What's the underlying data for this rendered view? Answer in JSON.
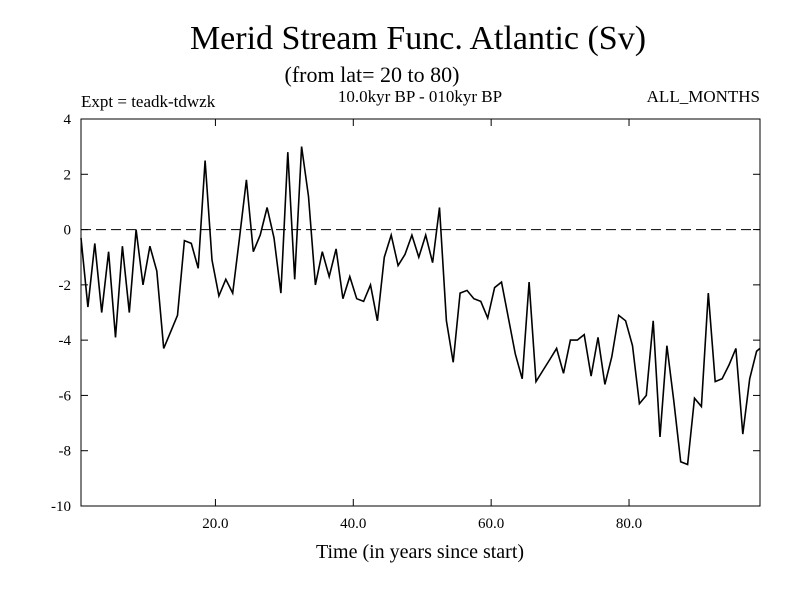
{
  "chart_data": {
    "type": "line",
    "title": "Merid Stream Func. Atlantic (Sv)",
    "subtitle": "(from lat= 20 to 80)",
    "expt_label": "Expt = teadk-tdwzk",
    "period_label": "10.0kyr BP - 010kyr BP",
    "months_label": "ALL_MONTHS",
    "xlabel": "Time (in years since start)",
    "ylabel": "",
    "xlim": [
      0.5,
      99
    ],
    "ylim": [
      -10,
      4
    ],
    "xticks": [
      20,
      40,
      60,
      80
    ],
    "xtick_labels": [
      "20.0",
      "40.0",
      "60.0",
      "80.0"
    ],
    "yticks": [
      -10,
      -8,
      -6,
      -4,
      -2,
      0,
      2,
      4
    ],
    "ytick_labels": [
      "-10",
      "-8",
      "-6",
      "-4",
      "-2",
      "0",
      "2",
      "4"
    ],
    "reference_line": {
      "y": 0,
      "style": "dashed"
    },
    "series": [
      {
        "name": "Merid Stream Func.",
        "x": [
          0.5,
          1.5,
          2.5,
          3.5,
          4.5,
          5.5,
          6.5,
          7.5,
          8.5,
          9.5,
          10.5,
          11.5,
          12.5,
          13.5,
          14.5,
          15.5,
          16.5,
          17.5,
          18.5,
          19.5,
          20.5,
          21.5,
          22.5,
          23.5,
          24.5,
          25.5,
          26.5,
          27.5,
          28.5,
          29.5,
          30.5,
          31.5,
          32.5,
          33.5,
          34.5,
          35.5,
          36.5,
          37.5,
          38.5,
          39.5,
          40.5,
          41.5,
          42.5,
          43.5,
          44.5,
          45.5,
          46.5,
          47.5,
          48.5,
          49.5,
          50.5,
          51.5,
          52.5,
          53.5,
          54.5,
          55.5,
          56.5,
          57.5,
          58.5,
          59.5,
          60.5,
          61.5,
          62.5,
          63.5,
          64.5,
          65.5,
          66.5,
          67.5,
          68.5,
          69.5,
          70.5,
          71.5,
          72.5,
          73.5,
          74.5,
          75.5,
          76.5,
          77.5,
          78.5,
          79.5,
          80.5,
          81.5,
          82.5,
          83.5,
          84.5,
          85.5,
          86.5,
          87.5,
          88.5,
          89.5,
          90.5,
          91.5,
          92.5,
          93.5,
          94.5,
          95.5,
          96.5,
          97.5,
          98.5,
          99.0
        ],
        "values": [
          -0.3,
          -2.8,
          -0.5,
          -3.0,
          -0.8,
          -3.9,
          -0.6,
          -3.0,
          0.0,
          -2.0,
          -0.6,
          -1.5,
          -4.3,
          -3.7,
          -3.1,
          -0.4,
          -0.5,
          -1.4,
          2.5,
          -1.1,
          -2.4,
          -1.8,
          -2.3,
          -0.3,
          1.8,
          -0.8,
          -0.2,
          0.8,
          -0.3,
          -2.3,
          2.8,
          -1.8,
          3.0,
          1.2,
          -2.0,
          -0.8,
          -1.7,
          -0.7,
          -2.5,
          -1.7,
          -2.5,
          -2.6,
          -2.0,
          -3.3,
          -1.0,
          -0.2,
          -1.3,
          -0.9,
          -0.2,
          -1.0,
          -0.2,
          -1.2,
          0.8,
          -3.3,
          -4.8,
          -2.3,
          -2.2,
          -2.5,
          -2.6,
          -3.2,
          -2.1,
          -1.9,
          -3.2,
          -4.5,
          -5.4,
          -1.9,
          -5.5,
          -5.1,
          -4.7,
          -4.3,
          -5.2,
          -4.0,
          -4.0,
          -3.8,
          -5.3,
          -3.9,
          -5.6,
          -4.6,
          -3.1,
          -3.3,
          -4.2,
          -6.3,
          -6.0,
          -3.3,
          -7.5,
          -4.2,
          -6.2,
          -8.4,
          -8.5,
          -6.1,
          -6.4,
          -2.3,
          -5.5,
          -5.4,
          -4.9,
          -4.3,
          -7.4,
          -5.4,
          -4.4,
          -4.3
        ]
      }
    ]
  }
}
